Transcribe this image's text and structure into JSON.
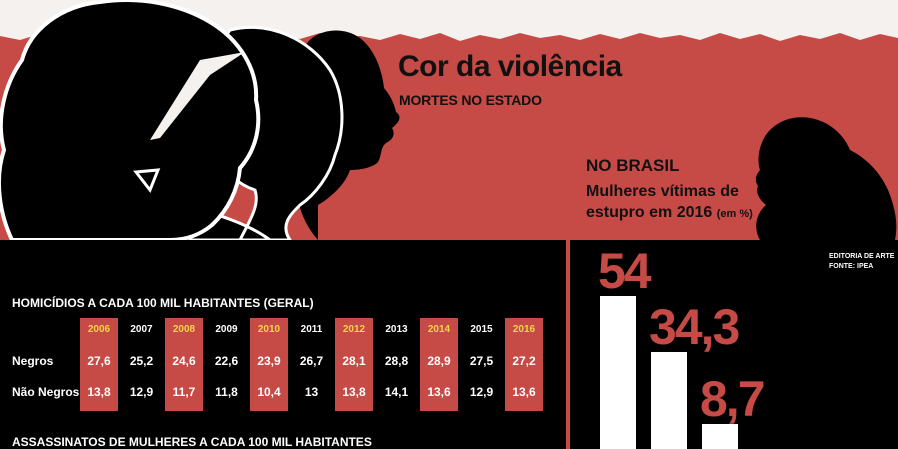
{
  "header": {
    "title": "Cor da violência",
    "subtitle": "MORTES NO ESTADO"
  },
  "brasil": {
    "heading": "NO BRASIL",
    "description": "Mulheres vítimas de estupro em 2016",
    "unit": "(em %)"
  },
  "credits": {
    "line1": "EDITORIA DE ARTE",
    "line2": "FONTE: IPEA"
  },
  "section2": {
    "title": "ASSASSINATOS DE MULHERES A CADA 100 MIL HABITANTES"
  },
  "table": {
    "title": "HOMICÍDIOS A CADA 100 MIL HABITANTES  (GERAL)",
    "years": [
      "2006",
      "2007",
      "2008",
      "2009",
      "2010",
      "2011",
      "2012",
      "2013",
      "2014",
      "2015",
      "2016"
    ],
    "rows": [
      {
        "label": "Negros",
        "values": [
          "27,6",
          "25,2",
          "24,6",
          "22,6",
          "23,9",
          "26,7",
          "28,1",
          "28,8",
          "28,9",
          "27,5",
          "27,2"
        ]
      },
      {
        "label": "Não Negros",
        "values": [
          "13,8",
          "12,9",
          "11,7",
          "11,8",
          "10,4",
          "13",
          "13,8",
          "14,1",
          "13,6",
          "12,9",
          "13,6"
        ]
      }
    ],
    "highlight_color": "#c64a45"
  },
  "chart_data": [
    {
      "type": "table",
      "title": "HOMICÍDIOS A CADA 100 MIL HABITANTES  (GERAL)",
      "columns": [
        "2006",
        "2007",
        "2008",
        "2009",
        "2010",
        "2011",
        "2012",
        "2013",
        "2014",
        "2015",
        "2016"
      ],
      "series": [
        {
          "name": "Negros",
          "values": [
            27.6,
            25.2,
            24.6,
            22.6,
            23.9,
            26.7,
            28.1,
            28.8,
            28.9,
            27.5,
            27.2
          ]
        },
        {
          "name": "Não Negros",
          "values": [
            13.8,
            12.9,
            11.7,
            11.8,
            10.4,
            13,
            13.8,
            14.1,
            13.6,
            12.9,
            13.6
          ]
        }
      ]
    },
    {
      "type": "bar",
      "title": "Mulheres vítimas de estupro em 2016",
      "ylabel": "(em %)",
      "values": [
        54,
        34.3,
        8.7
      ],
      "value_labels": [
        "54",
        "34,3",
        "8,7"
      ],
      "bar_color": "#ffffff",
      "label_color": "#c64a45"
    }
  ]
}
